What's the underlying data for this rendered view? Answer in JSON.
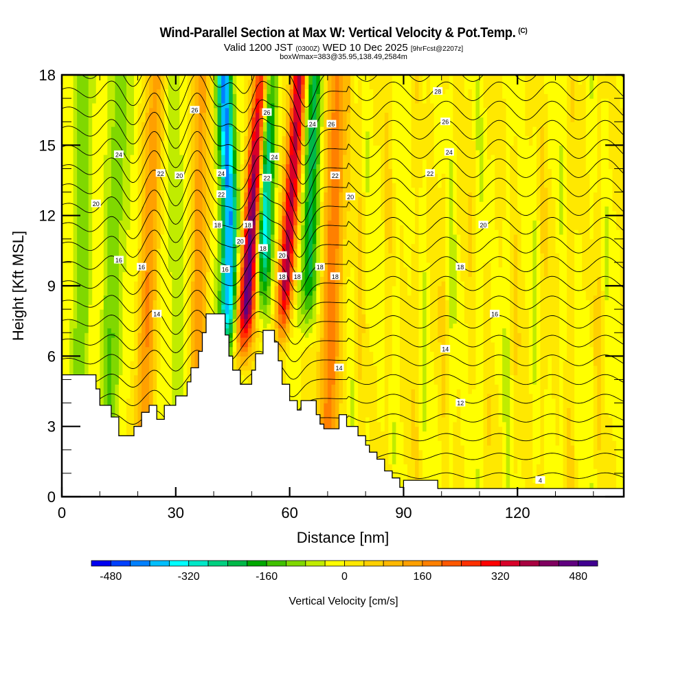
{
  "title": "Wind-Parallel Section at Max W: Vertical Velocity & Pot.Temp.",
  "title_mark": "(C)",
  "subtitle_a": "Valid 1200 JST",
  "subtitle_b": "(0300Z)",
  "subtitle_c": "WED 10 Dec 2025",
  "subtitle_d": "[9hrFcst@2207z]",
  "subtitle2": "boxWmax=383@35.95,138.49,2584m",
  "chart_data": {
    "type": "heatmap",
    "title": "Wind-Parallel Section at Max W: Vertical Velocity & Pot.Temp.",
    "xlabel": "Distance [nm]",
    "ylabel": "Height [Kft MSL]",
    "xlim": [
      0,
      148
    ],
    "ylim": [
      0,
      18
    ],
    "xticks": [
      0,
      30,
      60,
      90,
      120
    ],
    "xtick_labels": [
      "0",
      "30",
      "60",
      "90",
      "120"
    ],
    "yticks": [
      0,
      3,
      6,
      9,
      12,
      15,
      18
    ],
    "ytick_labels": [
      "0",
      "3",
      "6",
      "9",
      "12",
      "15",
      "18"
    ],
    "colorbar": {
      "label": "Vertical Velocity [cm/s]",
      "min": -520,
      "max": 520,
      "step": 40,
      "tick_values": [
        -480,
        -320,
        -160,
        0,
        160,
        320,
        480
      ],
      "tick_labels": [
        "-480",
        "-320",
        "-160",
        "0",
        "160",
        "320",
        "480"
      ],
      "colors": [
        "#0000f0",
        "#0040ff",
        "#0080ff",
        "#00bfff",
        "#00ffff",
        "#00e8c8",
        "#00d080",
        "#00b848",
        "#00a800",
        "#40c000",
        "#80d800",
        "#c0ec00",
        "#ffff00",
        "#ffe800",
        "#ffd000",
        "#ffb800",
        "#ffa000",
        "#ff8000",
        "#ff5800",
        "#ff3000",
        "#ff0000",
        "#d80028",
        "#a80040",
        "#800060",
        "#600080",
        "#400090"
      ]
    },
    "contour_variable": "Potential Temperature",
    "contour_labels": [
      {
        "text": "28",
        "x": 99,
        "y": 17.3
      },
      {
        "text": "26",
        "x": 35,
        "y": 16.5
      },
      {
        "text": "26",
        "x": 54,
        "y": 16.4
      },
      {
        "text": "26",
        "x": 71,
        "y": 15.9
      },
      {
        "text": "26",
        "x": 101,
        "y": 16.0
      },
      {
        "text": "24",
        "x": 15,
        "y": 14.6
      },
      {
        "text": "24",
        "x": 42,
        "y": 13.8
      },
      {
        "text": "24",
        "x": 56,
        "y": 14.5
      },
      {
        "text": "24",
        "x": 66,
        "y": 15.9
      },
      {
        "text": "24",
        "x": 102,
        "y": 14.7
      },
      {
        "text": "22",
        "x": 26,
        "y": 13.8
      },
      {
        "text": "22",
        "x": 42,
        "y": 12.9
      },
      {
        "text": "22",
        "x": 54,
        "y": 13.6
      },
      {
        "text": "22",
        "x": 72,
        "y": 13.7
      },
      {
        "text": "22",
        "x": 97,
        "y": 13.8
      },
      {
        "text": "20",
        "x": 31,
        "y": 13.7
      },
      {
        "text": "20",
        "x": 9,
        "y": 12.5
      },
      {
        "text": "20",
        "x": 47,
        "y": 10.9
      },
      {
        "text": "20",
        "x": 58,
        "y": 10.3
      },
      {
        "text": "20",
        "x": 76,
        "y": 12.8
      },
      {
        "text": "20",
        "x": 111,
        "y": 11.6
      },
      {
        "text": "18",
        "x": 41,
        "y": 11.6
      },
      {
        "text": "18",
        "x": 49,
        "y": 11.6
      },
      {
        "text": "18",
        "x": 53,
        "y": 10.6
      },
      {
        "text": "18",
        "x": 58,
        "y": 9.4
      },
      {
        "text": "18",
        "x": 62,
        "y": 9.4
      },
      {
        "text": "18",
        "x": 68,
        "y": 9.8
      },
      {
        "text": "18",
        "x": 72,
        "y": 9.4
      },
      {
        "text": "18",
        "x": 105,
        "y": 9.8
      },
      {
        "text": "16",
        "x": 15,
        "y": 10.1
      },
      {
        "text": "16",
        "x": 21,
        "y": 9.8
      },
      {
        "text": "16",
        "x": 43,
        "y": 9.7
      },
      {
        "text": "16",
        "x": 114,
        "y": 7.8
      },
      {
        "text": "14",
        "x": 25,
        "y": 7.8
      },
      {
        "text": "14",
        "x": 73,
        "y": 5.5
      },
      {
        "text": "14",
        "x": 101,
        "y": 6.3
      },
      {
        "text": "12",
        "x": 105,
        "y": 4.0
      },
      {
        "text": "4",
        "x": 126,
        "y": 0.7
      }
    ]
  }
}
